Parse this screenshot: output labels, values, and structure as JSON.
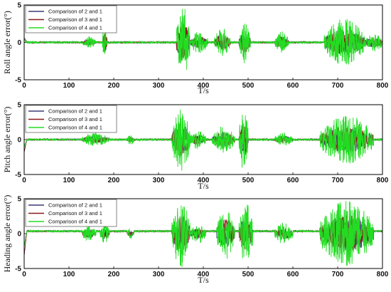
{
  "chart_data": [
    {
      "type": "line",
      "ylabel": "Roll angle error(°)",
      "xlabel": "T/s",
      "xlim": [
        0,
        800
      ],
      "ylim": [
        -5,
        5
      ],
      "xticks": [
        0,
        100,
        200,
        300,
        400,
        500,
        600,
        700,
        800
      ],
      "yticks": [
        5,
        0,
        -5
      ],
      "legend_position": "top-left",
      "series": [
        {
          "name": "Comparison of 2 and 1",
          "color": "#3a3a7a"
        },
        {
          "name": "Comparison of 3 and 1",
          "color": "#8b1a1a"
        },
        {
          "name": "Comparison of 4 and 1",
          "color": "#22dd22"
        }
      ],
      "disturbance_segments": [
        {
          "start": 130,
          "end": 160,
          "amplitude": 0.8
        },
        {
          "start": 175,
          "end": 185,
          "amplitude": 2.5
        },
        {
          "start": 340,
          "end": 370,
          "amplitude": 4.8
        },
        {
          "start": 370,
          "end": 410,
          "amplitude": 1.5
        },
        {
          "start": 425,
          "end": 460,
          "amplitude": 2.0
        },
        {
          "start": 480,
          "end": 505,
          "amplitude": 2.8
        },
        {
          "start": 560,
          "end": 590,
          "amplitude": 1.5
        },
        {
          "start": 670,
          "end": 760,
          "amplitude": 3.2
        },
        {
          "start": 760,
          "end": 800,
          "amplitude": 1.3
        }
      ]
    },
    {
      "type": "line",
      "ylabel": "Pitch angle error(°)",
      "xlabel": "T/s",
      "xlim": [
        0,
        800
      ],
      "ylim": [
        -5,
        5
      ],
      "xticks": [
        0,
        100,
        200,
        300,
        400,
        500,
        600,
        700,
        800
      ],
      "yticks": [
        5,
        0,
        -5
      ],
      "legend_position": "top-left",
      "series": [
        {
          "name": "Comparison of 2 and 1",
          "color": "#3a3a7a"
        },
        {
          "name": "Comparison of 3 and 1",
          "color": "#8b1a1a"
        },
        {
          "name": "Comparison of 4 and 1",
          "color": "#22dd22"
        }
      ],
      "disturbance_segments": [
        {
          "start": 130,
          "end": 190,
          "amplitude": 1.0
        },
        {
          "start": 230,
          "end": 245,
          "amplitude": 0.8
        },
        {
          "start": 330,
          "end": 370,
          "amplitude": 4.5
        },
        {
          "start": 370,
          "end": 405,
          "amplitude": 1.4
        },
        {
          "start": 420,
          "end": 470,
          "amplitude": 2.0
        },
        {
          "start": 480,
          "end": 500,
          "amplitude": 4.8
        },
        {
          "start": 560,
          "end": 600,
          "amplitude": 1.0
        },
        {
          "start": 660,
          "end": 780,
          "amplitude": 3.5
        }
      ]
    },
    {
      "type": "line",
      "ylabel": "Heading angle error(°)",
      "xlabel": "T/s",
      "xlim": [
        0,
        800
      ],
      "ylim": [
        -5,
        5
      ],
      "xticks": [
        0,
        100,
        200,
        300,
        400,
        500,
        600,
        700,
        800
      ],
      "yticks": [
        5,
        0,
        -5
      ],
      "legend_position": "top-left",
      "series": [
        {
          "name": "Comparison of 2 and 1",
          "color": "#3a3a7a"
        },
        {
          "name": "Comparison of 3 and 1",
          "color": "#8b1a1a"
        },
        {
          "name": "Comparison of 4 and 1",
          "color": "#22dd22"
        }
      ],
      "disturbance_segments": [
        {
          "start": 130,
          "end": 160,
          "amplitude": 1.2
        },
        {
          "start": 170,
          "end": 190,
          "amplitude": 1.6
        },
        {
          "start": 230,
          "end": 245,
          "amplitude": 0.8
        },
        {
          "start": 330,
          "end": 370,
          "amplitude": 4.9
        },
        {
          "start": 370,
          "end": 405,
          "amplitude": 1.5
        },
        {
          "start": 430,
          "end": 470,
          "amplitude": 3.8
        },
        {
          "start": 480,
          "end": 510,
          "amplitude": 4.5
        },
        {
          "start": 560,
          "end": 600,
          "amplitude": 1.6
        },
        {
          "start": 660,
          "end": 780,
          "amplitude": 4.8
        }
      ]
    }
  ]
}
